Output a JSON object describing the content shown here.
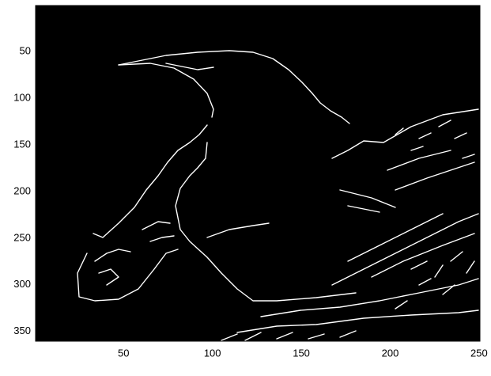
{
  "chart_data": {
    "type": "image",
    "xlim": [
      0.5,
      250.5
    ],
    "xticks": [
      50,
      100,
      150,
      200,
      250
    ],
    "ylim": [
      0.5,
      360.5
    ],
    "yticks": [
      50,
      100,
      150,
      200,
      250,
      300,
      350
    ],
    "y_reversed": true,
    "background": "#000000",
    "edge_color": "#ffffff"
  }
}
